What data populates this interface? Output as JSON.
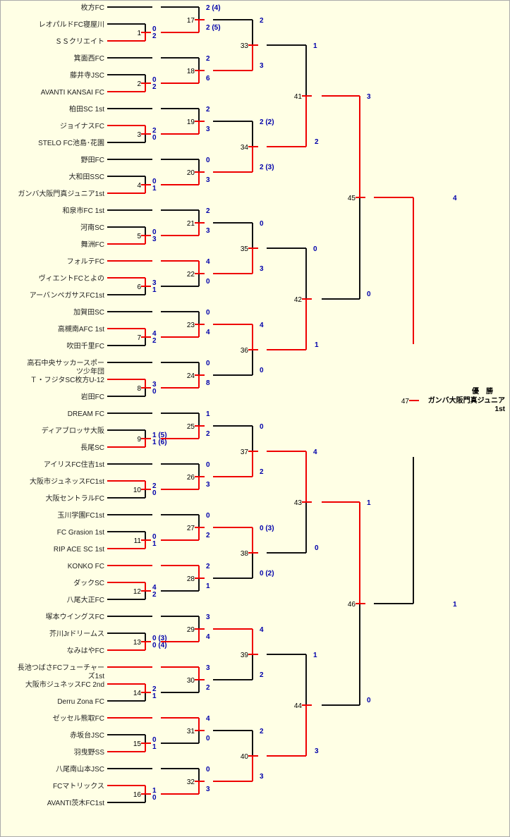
{
  "title": "ガンバ大阪門真ジュニア1st 優勝",
  "teams": [
    "枚方FC",
    "レオパルドFC寝屋川",
    "ＳＳクリエイト",
    "箕面西FC",
    "藤井寺JSC",
    "AVANTI KANSAI FC",
    "柏田SC 1st",
    "ジョイナスFC",
    "STELO FC池島･花園",
    "野田FC",
    "大和田SSC",
    "ガンバ大阪門真ジュニア1st",
    "和泉市FC 1st",
    "河南SC",
    "舞洲FC",
    "フォルテFC",
    "ヴィエントFCとよの",
    "アーバンペガサスFC1st",
    "加賀田SC",
    "高槻南AFC 1st",
    "吹田千里FC",
    "高石中央サッカースポーツ少年団",
    "Ｔ・フジタSC枚方U-12",
    "岩田FC",
    "DREAM FC",
    "ディアブロッサ大阪",
    "長尾SC",
    "アイリスFC住吉1st",
    "大阪市ジュネッスFC1st",
    "大阪セントラルFC",
    "玉川学園FC1st",
    "FC Grasion 1st",
    "RIP ACE SC 1st",
    "KONKO FC",
    "ダックSC",
    "八尾大正FC",
    "塚本ウイングスFC",
    "芥川Jrドリームス",
    "なみはやFC",
    "長池つばさFCフューチャーズ1st",
    "大阪市ジュネッスFC 2nd",
    "Derru Zona FC",
    "ゼッセル熊取FC",
    "赤坂台JSC",
    "羽曳野SS",
    "八尾南山本JSC",
    "FCマトリックス",
    "AVANTI茨木FC1st"
  ],
  "groups": [
    {
      "r1": {
        "no": "1",
        "a": "0",
        "b": "2",
        "w": "b"
      },
      "r2": {
        "no": "17",
        "top": "2 (4)",
        "bot": "2 (5)",
        "w": "bot"
      }
    },
    {
      "r1": {
        "no": "2",
        "a": "0",
        "b": "2",
        "w": "b"
      },
      "r2": {
        "no": "18",
        "top": "2",
        "bot": "6",
        "w": "bot"
      }
    },
    {
      "r1": {
        "no": "3",
        "a": "2",
        "b": "0",
        "w": "a"
      },
      "r2": {
        "no": "19",
        "top": "2",
        "bot": "3",
        "w": "bot"
      }
    },
    {
      "r1": {
        "no": "4",
        "a": "0",
        "b": "1",
        "w": "b"
      },
      "r2": {
        "no": "20",
        "top": "0",
        "bot": "3",
        "w": "bot"
      }
    },
    {
      "r1": {
        "no": "5",
        "a": "0",
        "b": "3",
        "w": "b"
      },
      "r2": {
        "no": "21",
        "top": "2",
        "bot": "3",
        "w": "bot"
      }
    },
    {
      "r1": {
        "no": "6",
        "a": "3",
        "b": "1",
        "w": "a"
      },
      "r2": {
        "no": "22",
        "top": "4",
        "bot": "0",
        "w": "top"
      }
    },
    {
      "r1": {
        "no": "7",
        "a": "4",
        "b": "2",
        "w": "a"
      },
      "r2": {
        "no": "23",
        "top": "0",
        "bot": "4",
        "w": "bot"
      }
    },
    {
      "r1": {
        "no": "8",
        "a": "3",
        "b": "0",
        "w": "a"
      },
      "r2": {
        "no": "24",
        "top": "0",
        "bot": "8",
        "w": "bot"
      }
    },
    {
      "r1": {
        "no": "9",
        "a": "1 (5)",
        "b": "1 (6)",
        "w": "b"
      },
      "r2": {
        "no": "25",
        "top": "1",
        "bot": "2",
        "w": "bot"
      }
    },
    {
      "r1": {
        "no": "10",
        "a": "2",
        "b": "0",
        "w": "a"
      },
      "r2": {
        "no": "26",
        "top": "0",
        "bot": "3",
        "w": "bot"
      }
    },
    {
      "r1": {
        "no": "11",
        "a": "0",
        "b": "1",
        "w": "b"
      },
      "r2": {
        "no": "27",
        "top": "0",
        "bot": "2",
        "w": "bot"
      }
    },
    {
      "r1": {
        "no": "12",
        "a": "4",
        "b": "2",
        "w": "a"
      },
      "r2": {
        "no": "28",
        "top": "2",
        "bot": "1",
        "w": "top"
      }
    },
    {
      "r1": {
        "no": "13",
        "a": "0 (3)",
        "b": "0 (4)",
        "w": "b"
      },
      "r2": {
        "no": "29",
        "top": "3",
        "bot": "4",
        "w": "bot"
      }
    },
    {
      "r1": {
        "no": "14",
        "a": "2",
        "b": "1",
        "w": "a"
      },
      "r2": {
        "no": "30",
        "top": "3",
        "bot": "2",
        "w": "top"
      }
    },
    {
      "r1": {
        "no": "15",
        "a": "0",
        "b": "1",
        "w": "b"
      },
      "r2": {
        "no": "31",
        "top": "4",
        "bot": "0",
        "w": "top"
      }
    },
    {
      "r1": {
        "no": "16",
        "a": "1",
        "b": "0",
        "w": "a"
      },
      "r2": {
        "no": "32",
        "top": "0",
        "bot": "3",
        "w": "bot"
      }
    }
  ],
  "round3": [
    {
      "no": "33",
      "top": "2",
      "bot": "3",
      "w": "bot"
    },
    {
      "no": "34",
      "top": "2 (2)",
      "bot": "2 (3)",
      "w": "bot"
    },
    {
      "no": "35",
      "top": "0",
      "bot": "3",
      "w": "bot"
    },
    {
      "no": "36",
      "top": "4",
      "bot": "0",
      "w": "top"
    },
    {
      "no": "37",
      "top": "0",
      "bot": "2",
      "w": "bot"
    },
    {
      "no": "38",
      "top": "0 (3)",
      "bot": "0 (2)",
      "w": "top"
    },
    {
      "no": "39",
      "top": "4",
      "bot": "2",
      "w": "top"
    },
    {
      "no": "40",
      "top": "2",
      "bot": "3",
      "w": "bot"
    }
  ],
  "round4": [
    {
      "no": "41",
      "top": "1",
      "bot": "2",
      "w": "bot"
    },
    {
      "no": "42",
      "top": "0",
      "bot": "1",
      "w": "bot"
    },
    {
      "no": "43",
      "top": "4",
      "bot": "0",
      "w": "top"
    },
    {
      "no": "44",
      "top": "1",
      "bot": "3",
      "w": "bot"
    }
  ],
  "round5": [
    {
      "no": "45",
      "top": "3",
      "bot": "0",
      "w": "top"
    },
    {
      "no": "46",
      "top": "1",
      "bot": "0",
      "w": "top"
    }
  ],
  "final": {
    "no": "47",
    "top": "4",
    "bot": "1",
    "w": "top"
  },
  "champion": {
    "label": "優　勝",
    "name_line1": "ガンバ大阪門真ジュニア",
    "name_line2": "1st"
  },
  "colors": {
    "win": "#ee0000",
    "lose": "#111111",
    "score": "#0000aa",
    "background": "#ffffe5"
  }
}
